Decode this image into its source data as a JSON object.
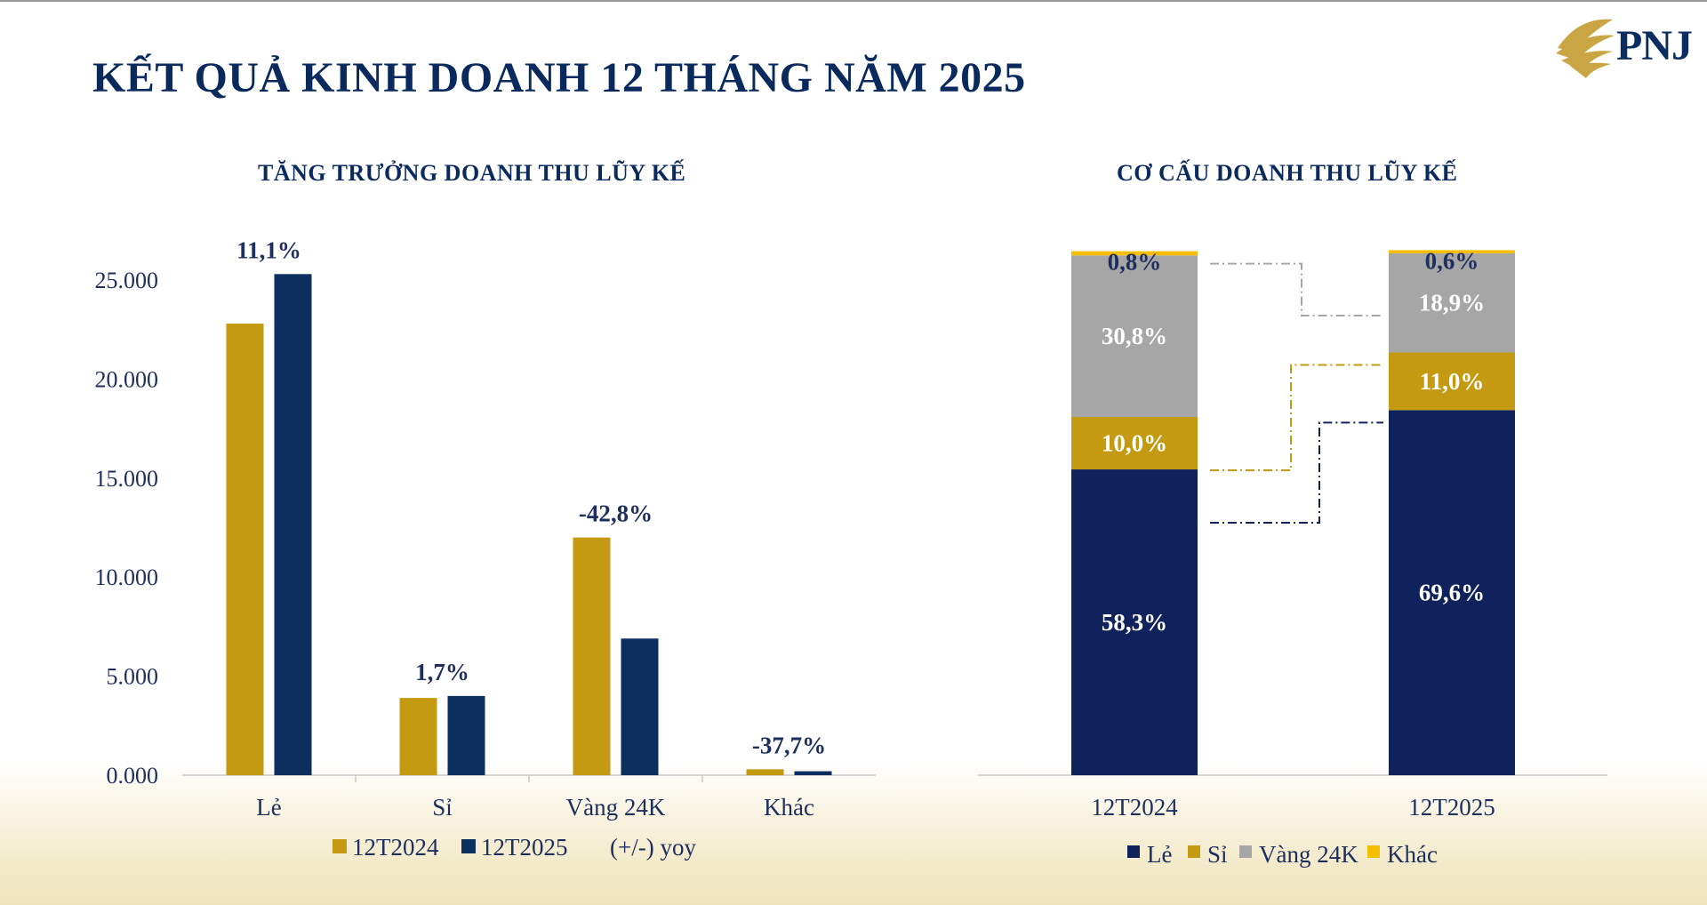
{
  "page": {
    "title": "KẾT QUẢ KINH DOANH 12 THÁNG NĂM 2025",
    "logo_text": "PNJ"
  },
  "colors": {
    "gold": "#c49a12",
    "navy": "#0d2f5f",
    "navy_stack": "#0f225c",
    "gray": "#a6a6a6",
    "yellow": "#f5bf00",
    "text": "#1e2f5e"
  },
  "chart_data": [
    {
      "type": "bar",
      "title": "TĂNG TRƯỞNG DOANH THU LŨY KẾ",
      "categories": [
        "Lẻ",
        "Sỉ",
        "Vàng 24K",
        "Khác"
      ],
      "series": [
        {
          "name": "12T2024",
          "values": [
            22800,
            3900,
            12000,
            300
          ]
        },
        {
          "name": "12T2025",
          "values": [
            25300,
            4000,
            6900,
            200
          ]
        }
      ],
      "yoy_labels": [
        "11,1%",
        "1,7%",
        "-42,8%",
        "-37,7%"
      ],
      "yoy_legend": "(+/-) yoy",
      "ylim": [
        0,
        25000
      ],
      "yticks": [
        "0.000",
        "5.000",
        "10.000",
        "15.000",
        "20.000",
        "25.000"
      ],
      "ytick_values": [
        0,
        5000,
        10000,
        15000,
        20000,
        25000
      ],
      "legend_position": "bottom"
    },
    {
      "type": "bar",
      "stacked": true,
      "percent": true,
      "title": "CƠ CẤU DOANH THU LŨY KẾ",
      "categories": [
        "12T2024",
        "12T2025"
      ],
      "series": [
        {
          "name": "Lẻ",
          "values": [
            58.3,
            69.6
          ],
          "labels": [
            "58,3%",
            "69,6%"
          ]
        },
        {
          "name": "Sỉ",
          "values": [
            10.0,
            11.0
          ],
          "labels": [
            "10,0%",
            "11,0%"
          ]
        },
        {
          "name": "Vàng 24K",
          "values": [
            30.8,
            18.9
          ],
          "labels": [
            "30,8%",
            "18,9%"
          ]
        },
        {
          "name": "Khác",
          "values": [
            0.8,
            0.6
          ],
          "labels": [
            "0,8%",
            "0,6%"
          ]
        }
      ],
      "legend_position": "bottom"
    }
  ]
}
